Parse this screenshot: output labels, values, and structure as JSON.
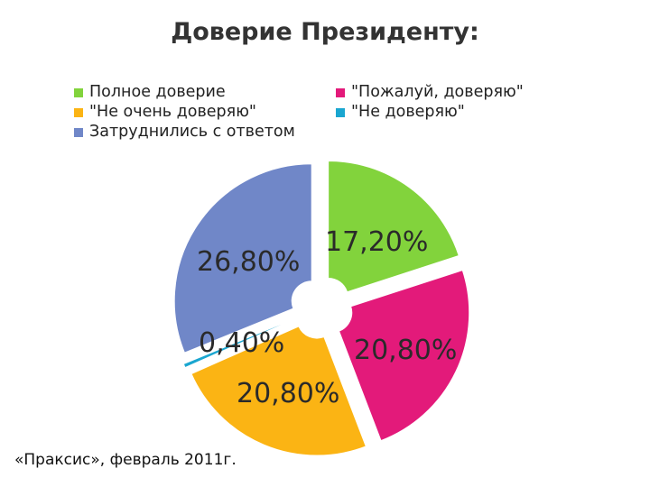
{
  "title": "Доверие Президенту:",
  "source": "«Праксис», февраль 2011г.",
  "chart_data": {
    "type": "pie",
    "title": "Доверие Президенту:",
    "legend_position": "top",
    "series": [
      {
        "name": "Полное доверие",
        "value": 17.2,
        "label": "17,20%",
        "color": "#82d33c"
      },
      {
        "name": "\"Пожалуй, доверяю\"",
        "value": 20.8,
        "label": "20,80%",
        "color": "#e31a7a"
      },
      {
        "name": "\"Не очень доверяю\"",
        "value": 20.8,
        "label": "20,80%",
        "color": "#fbb414"
      },
      {
        "name": "\"Не доверяю\"",
        "value": 0.4,
        "label": "0,40%",
        "color": "#1aa6d0"
      },
      {
        "name": "Затруднились с ответом",
        "value": 26.8,
        "label": "26,80%",
        "color": "#7087c8"
      }
    ]
  }
}
